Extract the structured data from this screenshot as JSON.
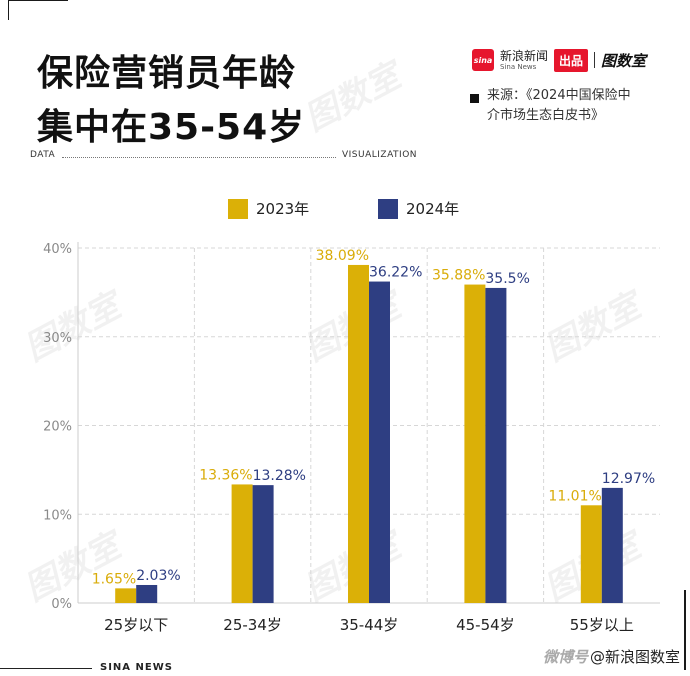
{
  "header": {
    "title_line1": "保险营销员年龄",
    "title_line2": "集中在35-54岁",
    "brand_cn": "新浪新闻",
    "brand_en": "Sina News",
    "brand_badge": "出品",
    "brand_logo_text": "sina",
    "brand_product": "图数室",
    "source_line1": "来源：《2024中国保险中",
    "source_line2": "介市场生态白皮书》",
    "tag_left": "DATA",
    "tag_right": "VISUALIZATION"
  },
  "footer": {
    "left": "SINA NEWS",
    "weibo_mark": "微博号",
    "right": "@新浪图数室"
  },
  "colors": {
    "series_2023": "#dbb007",
    "series_2024": "#2e3e82",
    "label_2023": "#d9ac0a",
    "label_2024": "#2e3e82",
    "grid": "#d7d7d7",
    "axis": "#cccccc",
    "tick_text": "#8a8a8a"
  },
  "chart_data": {
    "type": "bar",
    "categories": [
      "25岁以下",
      "25-34岁",
      "35-44岁",
      "45-54岁",
      "55岁以上"
    ],
    "series": [
      {
        "name": "2023年",
        "values": [
          1.65,
          13.36,
          38.09,
          35.88,
          11.01
        ],
        "labels": [
          "1.65%",
          "13.36%",
          "38.09%",
          "35.88%",
          "11.01%"
        ]
      },
      {
        "name": "2024年",
        "values": [
          2.03,
          13.28,
          36.22,
          35.5,
          12.97
        ],
        "labels": [
          "2.03%",
          "13.28%",
          "36.22%",
          "35.5%",
          "12.97%"
        ]
      }
    ],
    "yticks": [
      "0%",
      "10%",
      "20%",
      "30%",
      "40%"
    ],
    "ylim": [
      0,
      40
    ],
    "grid": true,
    "legend_position": "top-center"
  }
}
